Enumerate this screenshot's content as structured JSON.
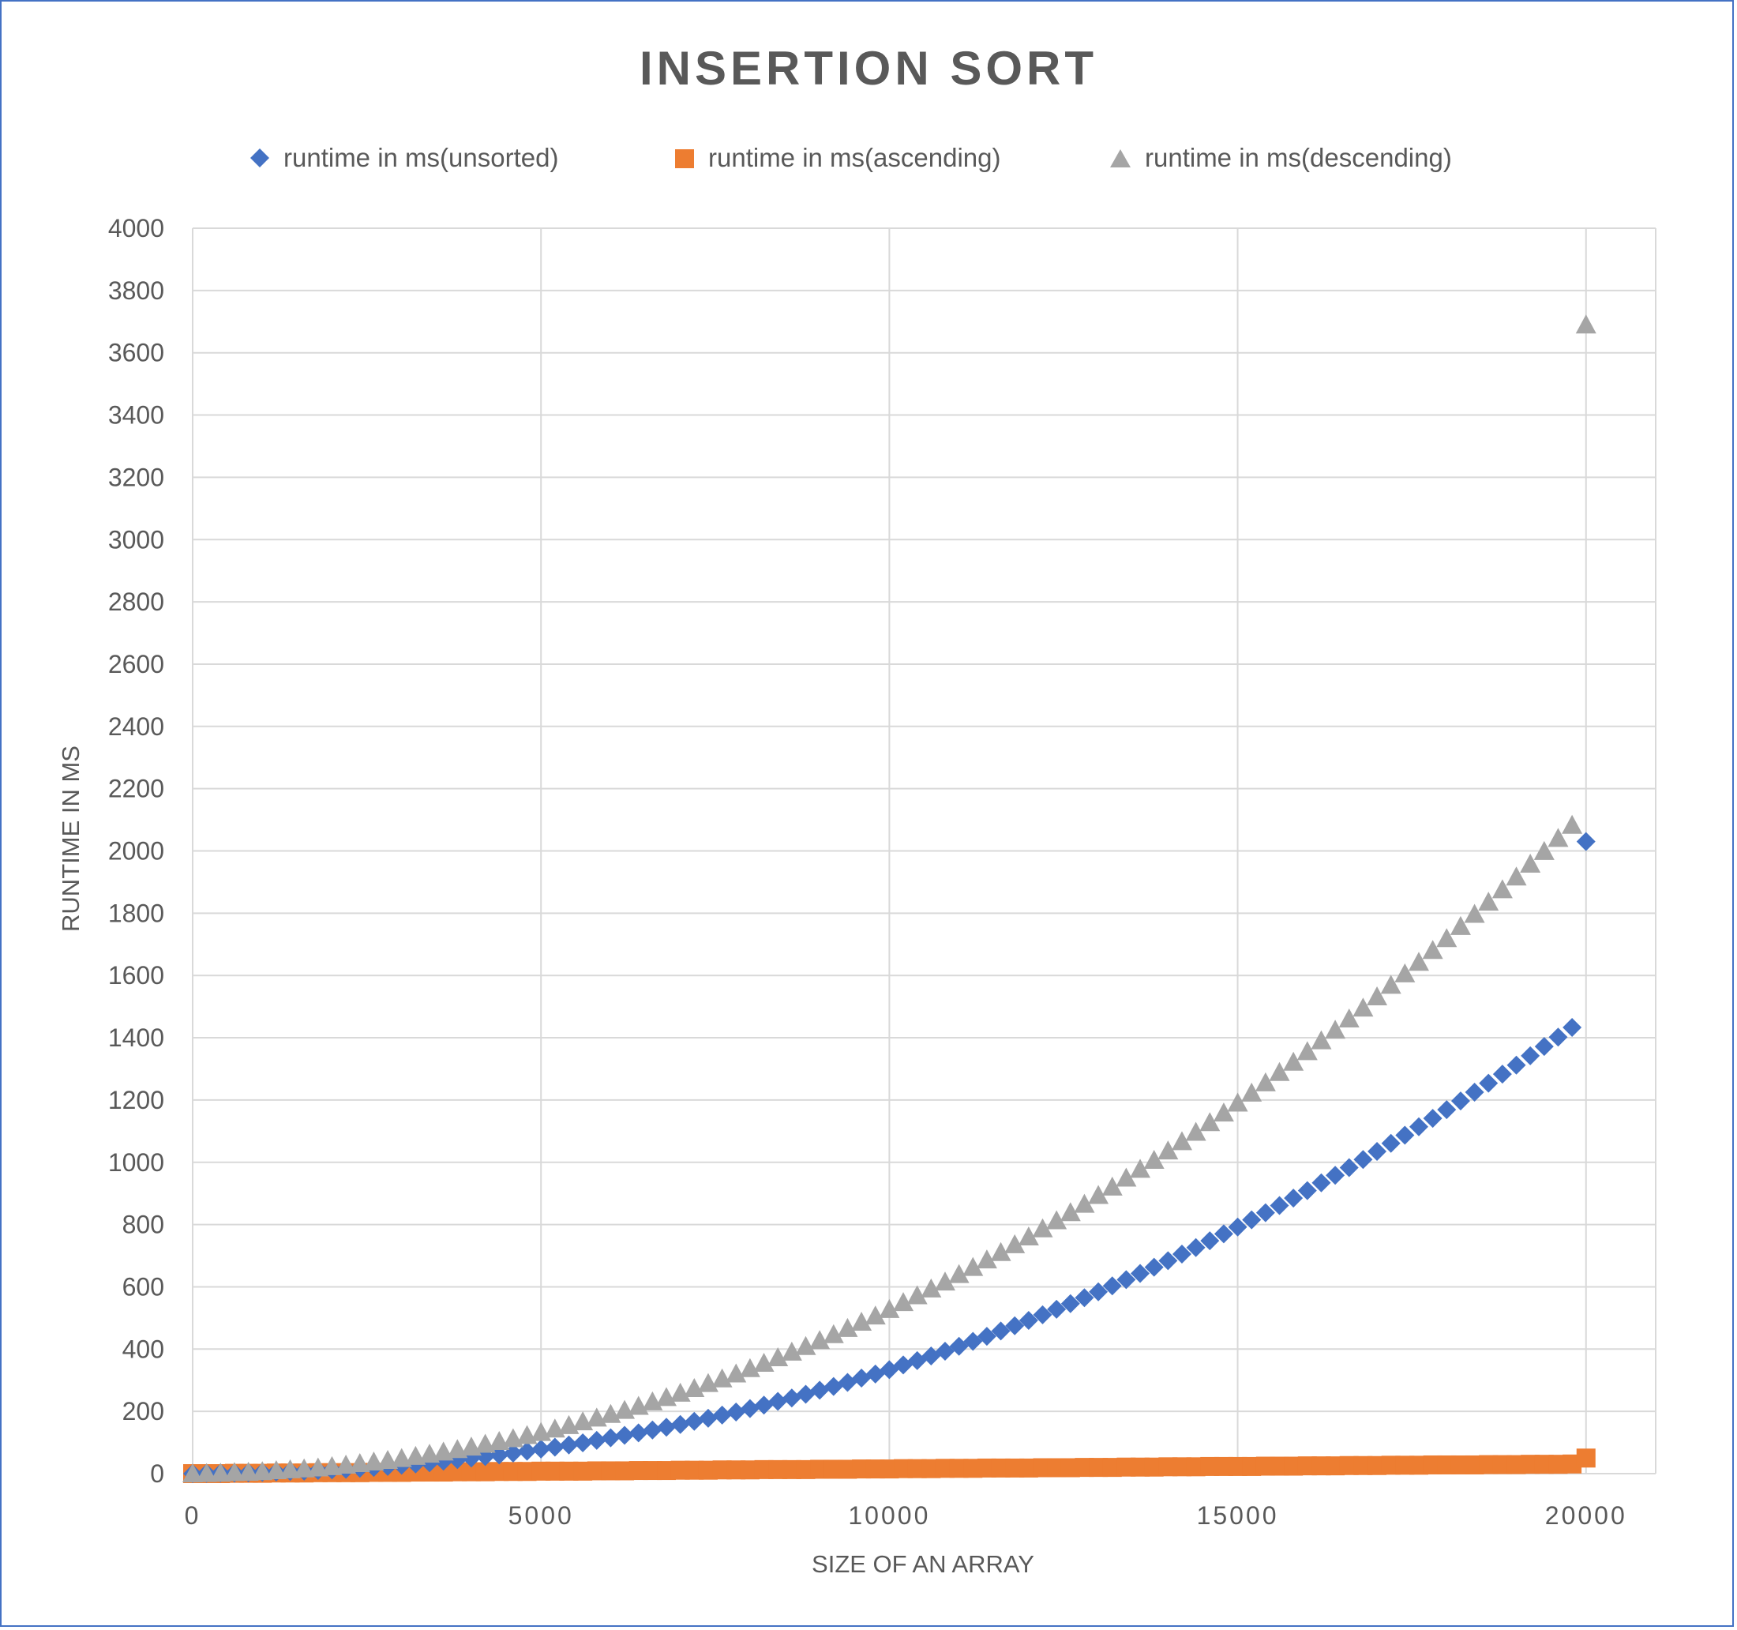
{
  "chart_data": {
    "type": "scatter",
    "title": "INSERTION SORT",
    "xlabel": "SIZE OF AN ARRAY",
    "ylabel": "RUNTIME IN MS",
    "xlim": [
      0,
      21000
    ],
    "ylim": [
      0,
      4000
    ],
    "xticks": [
      "0",
      "5000",
      "10000",
      "15000",
      "20000"
    ],
    "yticks": [
      "0",
      "200",
      "400",
      "600",
      "800",
      "1000",
      "1200",
      "1400",
      "1600",
      "1800",
      "2000",
      "2200",
      "2400",
      "2600",
      "2800",
      "3000",
      "3200",
      "3400",
      "3600",
      "3800",
      "4000"
    ],
    "grid": true,
    "legend_position": "top",
    "series": [
      {
        "name": "runtime in ms(unsorted)",
        "marker": "diamond",
        "color": "#4472c4",
        "x_start": 0,
        "x_step": 200,
        "y": [
          0,
          1,
          2,
          2,
          3,
          4,
          5,
          7,
          8,
          10,
          12,
          14,
          17,
          20,
          23,
          27,
          31,
          35,
          40,
          45,
          50,
          55,
          60,
          66,
          72,
          79,
          85,
          92,
          99,
          107,
          115,
          123,
          131,
          140,
          149,
          158,
          168,
          178,
          188,
          198,
          209,
          220,
          232,
          243,
          255,
          268,
          280,
          293,
          307,
          320,
          334,
          349,
          363,
          378,
          393,
          409,
          425,
          441,
          458,
          475,
          492,
          510,
          528,
          546,
          565,
          584,
          603,
          623,
          643,
          663,
          684,
          705,
          726,
          748,
          770,
          792,
          815,
          838,
          861,
          885,
          909,
          934,
          958,
          983,
          1009,
          1035,
          1061,
          1087,
          1114,
          1141,
          1169,
          1197,
          1225,
          1254,
          1283,
          1312,
          1342,
          1372,
          1402,
          1433,
          2030
        ]
      },
      {
        "name": "runtime in ms(ascending)",
        "marker": "square",
        "color": "#ed7d31",
        "x_start": 0,
        "x_step": 200,
        "y": [
          0,
          0,
          0,
          1,
          1,
          1,
          2,
          2,
          2,
          3,
          3,
          3,
          3,
          4,
          4,
          4,
          5,
          5,
          5,
          6,
          6,
          6,
          7,
          7,
          7,
          8,
          8,
          8,
          8,
          9,
          9,
          9,
          10,
          10,
          10,
          11,
          11,
          11,
          12,
          12,
          12,
          13,
          13,
          13,
          13,
          14,
          14,
          14,
          15,
          15,
          15,
          16,
          16,
          16,
          17,
          17,
          17,
          18,
          18,
          18,
          18,
          19,
          19,
          19,
          20,
          20,
          20,
          21,
          21,
          21,
          22,
          22,
          22,
          23,
          23,
          23,
          23,
          24,
          24,
          24,
          25,
          25,
          25,
          26,
          26,
          26,
          27,
          27,
          27,
          28,
          28,
          28,
          28,
          29,
          29,
          29,
          30,
          30,
          30,
          31,
          50
        ]
      },
      {
        "name": "runtime in ms(descending)",
        "marker": "triangle",
        "color": "#a5a5a5",
        "x_start": 0,
        "x_step": 200,
        "y": [
          0,
          1,
          2,
          4,
          5,
          7,
          10,
          13,
          16,
          19,
          23,
          28,
          33,
          38,
          43,
          49,
          56,
          63,
          70,
          78,
          86,
          95,
          104,
          113,
          123,
          133,
          144,
          155,
          167,
          179,
          191,
          204,
          217,
          231,
          245,
          259,
          274,
          290,
          305,
          321,
          338,
          355,
          373,
          391,
          409,
          428,
          447,
          467,
          487,
          507,
          528,
          550,
          572,
          594,
          616,
          640,
          663,
          687,
          711,
          736,
          761,
          787,
          813,
          839,
          866,
          894,
          921,
          950,
          978,
          1007,
          1037,
          1067,
          1097,
          1128,
          1159,
          1191,
          1223,
          1256,
          1289,
          1322,
          1356,
          1391,
          1425,
          1461,
          1496,
          1532,
          1569,
          1606,
          1643,
          1681,
          1719,
          1758,
          1797,
          1836,
          1876,
          1917,
          1958,
          1999,
          2041,
          2083,
          3690
        ]
      }
    ]
  }
}
